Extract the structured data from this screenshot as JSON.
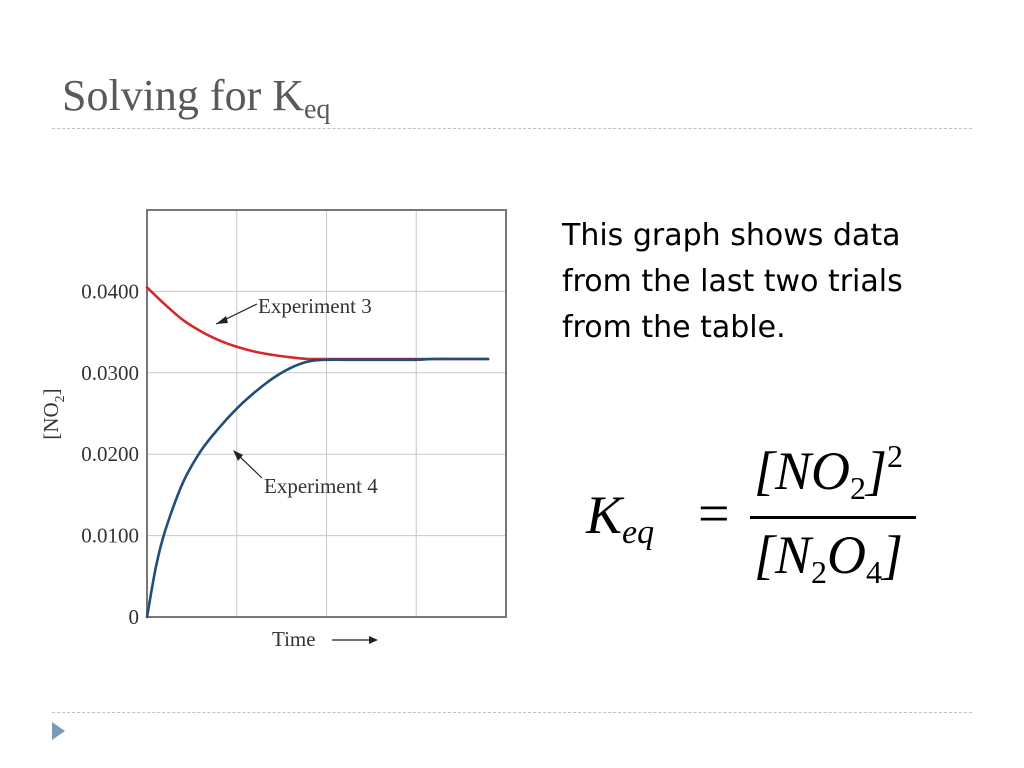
{
  "slide": {
    "title": "Solving for K",
    "title_sub": "eq",
    "body_text": "This graph shows data from the last two trials from the table.",
    "equation": {
      "lhs_symbol": "K",
      "lhs_sub": "eq",
      "equals": "=",
      "numerator": "[NO",
      "numerator_sub": "2",
      "numerator_close": "]",
      "numerator_sup": "2",
      "denominator_open": "[N",
      "denominator_sub1": "2",
      "denominator_mid": "O",
      "denominator_sub2": "4",
      "denominator_close": "]"
    },
    "colors": {
      "title": "#595959",
      "rule": "#b8c4cc",
      "bullet": "#7a9bb1",
      "exp3": "#d42a2a",
      "exp4": "#1f4e79"
    }
  },
  "chart_data": {
    "type": "line",
    "xlabel": "Time",
    "ylabel_main": "[NO",
    "ylabel_sub": "2",
    "ylabel_close": "]",
    "ylim": [
      0,
      0.05
    ],
    "yticks": [
      0,
      0.01,
      0.02,
      0.03,
      0.04
    ],
    "ytick_labels": [
      "0",
      "0.0100",
      "0.0200",
      "0.0300",
      "0.0400"
    ],
    "grid": true,
    "series": [
      {
        "name": "Experiment 3",
        "color": "#d42a2a",
        "x": [
          0,
          0.05,
          0.1,
          0.15,
          0.2,
          0.25,
          0.3,
          0.35,
          0.4,
          0.45,
          0.5,
          0.55,
          0.6,
          0.65,
          0.7,
          0.75,
          0.8,
          0.85,
          0.9,
          0.95
        ],
        "values": [
          0.0405,
          0.0384,
          0.0365,
          0.0351,
          0.034,
          0.0332,
          0.0326,
          0.0322,
          0.0319,
          0.0317,
          0.0317,
          0.0317,
          0.0317,
          0.0317,
          0.0317,
          0.0317,
          0.0317,
          0.0317,
          0.0317,
          0.0317
        ]
      },
      {
        "name": "Experiment 4",
        "color": "#1f4e79",
        "x": [
          0,
          0.025,
          0.05,
          0.1,
          0.15,
          0.2,
          0.25,
          0.3,
          0.35,
          0.4,
          0.45,
          0.5,
          0.55,
          0.6,
          0.65,
          0.7,
          0.75,
          0.8,
          0.85,
          0.9,
          0.95
        ],
        "values": [
          0,
          0.0062,
          0.0105,
          0.0165,
          0.0204,
          0.0232,
          0.0256,
          0.0276,
          0.0293,
          0.0306,
          0.0314,
          0.0316,
          0.0316,
          0.0316,
          0.0316,
          0.0316,
          0.0316,
          0.0317,
          0.0317,
          0.0317,
          0.0317
        ]
      }
    ],
    "annotations": [
      {
        "text": "Experiment 3",
        "series": 0
      },
      {
        "text": "Experiment 4",
        "series": 1
      }
    ]
  }
}
